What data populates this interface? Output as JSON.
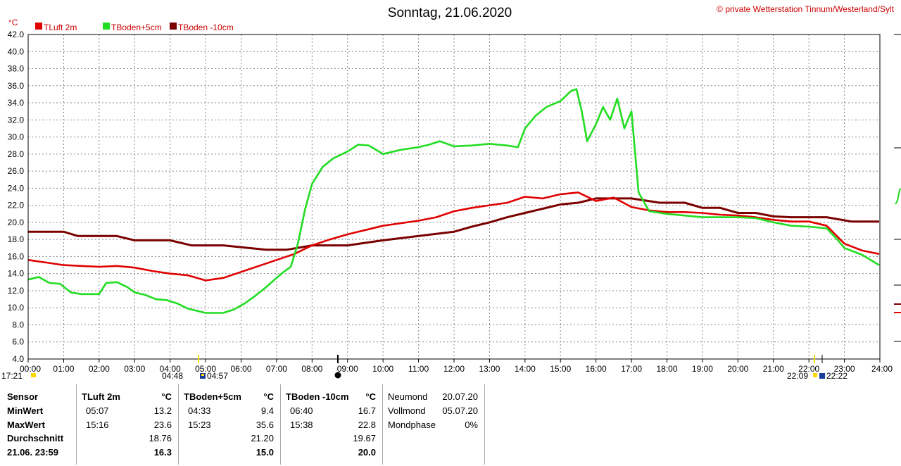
{
  "title": "Sonntag, 21.06.2020",
  "copyright": "© private Wetterstation Tinnum/Westerland/Sylt",
  "y_unit": "°C",
  "chart_data": {
    "type": "line",
    "title": "Sonntag, 21.06.2020",
    "ylim": [
      4.0,
      42.0
    ],
    "yticks": [
      "4.0",
      "6.0",
      "8.0",
      "10.0",
      "12.0",
      "14.0",
      "16.0",
      "18.0",
      "20.0",
      "22.0",
      "24.0",
      "26.0",
      "28.0",
      "30.0",
      "32.0",
      "34.0",
      "36.0",
      "38.0",
      "40.0",
      "42.0"
    ],
    "xticks": [
      "00:00",
      "01:00",
      "02:00",
      "03:00",
      "04:00",
      "05:00",
      "06:00",
      "07:00",
      "08:00",
      "09:00",
      "10:00",
      "11:00",
      "12:00",
      "13:00",
      "14:00",
      "15:00",
      "16:00",
      "17:00",
      "18:00",
      "19:00",
      "20:00",
      "21:00",
      "22:00",
      "23:00",
      "24:00"
    ],
    "xlim": [
      0,
      24
    ],
    "grid": true,
    "legend_position": "top-left",
    "series": [
      {
        "name": "TLuft 2m",
        "color": "#e00000",
        "x": [
          0,
          0.5,
          1,
          1.5,
          2,
          2.5,
          3,
          3.5,
          4,
          4.5,
          5,
          5.5,
          6,
          6.5,
          7,
          7.5,
          8,
          8.5,
          9,
          9.5,
          10,
          10.5,
          11,
          11.5,
          12,
          12.5,
          13,
          13.5,
          14,
          14.5,
          15,
          15.5,
          16,
          16.5,
          17,
          17.5,
          18,
          18.5,
          19,
          19.5,
          20,
          20.5,
          21,
          21.5,
          22,
          22.5,
          23,
          23.5,
          23.98
        ],
        "y": [
          15.6,
          15.3,
          15.0,
          14.9,
          14.8,
          14.9,
          14.7,
          14.3,
          14.0,
          13.8,
          13.2,
          13.5,
          14.2,
          14.9,
          15.6,
          16.3,
          17.3,
          18.0,
          18.6,
          19.1,
          19.6,
          19.9,
          20.2,
          20.6,
          21.3,
          21.7,
          22.0,
          22.3,
          23.0,
          22.8,
          23.3,
          23.5,
          22.5,
          22.9,
          21.8,
          21.4,
          21.2,
          21.2,
          21.1,
          20.9,
          20.8,
          20.6,
          20.3,
          20.1,
          20.1,
          19.6,
          17.5,
          16.7,
          16.3
        ]
      },
      {
        "name": "TBoden+5cm",
        "color": "#22dd22",
        "x": [
          0,
          0.3,
          0.6,
          0.9,
          1.2,
          1.5,
          2,
          2.2,
          2.5,
          2.8,
          3,
          3.3,
          3.6,
          3.9,
          4.2,
          4.5,
          4.8,
          5,
          5.5,
          5.8,
          6.1,
          6.4,
          6.7,
          7,
          7.2,
          7.4,
          7.6,
          7.8,
          8,
          8.3,
          8.6,
          9,
          9.3,
          9.6,
          10,
          10.5,
          11,
          11.3,
          11.6,
          12,
          12.5,
          13,
          13.5,
          13.8,
          14,
          14.3,
          14.6,
          15,
          15.3,
          15.45,
          15.6,
          15.75,
          16,
          16.2,
          16.4,
          16.6,
          16.8,
          17,
          17.2,
          17.5,
          18,
          18.5,
          19,
          19.5,
          20,
          20.5,
          21,
          21.5,
          22,
          22.5,
          22.8,
          23,
          23.5,
          23.98
        ],
        "y": [
          13.3,
          13.6,
          12.9,
          12.8,
          11.8,
          11.6,
          11.6,
          12.9,
          13.0,
          12.4,
          11.8,
          11.5,
          11.0,
          10.9,
          10.5,
          9.9,
          9.6,
          9.4,
          9.4,
          9.8,
          10.5,
          11.4,
          12.4,
          13.5,
          14.2,
          14.8,
          17.5,
          21.5,
          24.5,
          26.5,
          27.5,
          28.3,
          29.1,
          29.0,
          28.0,
          28.5,
          28.8,
          29.1,
          29.5,
          28.9,
          29.0,
          29.2,
          29.0,
          28.8,
          31.0,
          32.5,
          33.5,
          34.2,
          35.4,
          35.6,
          33.0,
          29.5,
          31.5,
          33.5,
          32.0,
          34.5,
          31.0,
          33.0,
          23.5,
          21.3,
          21.0,
          20.8,
          20.6,
          20.6,
          20.6,
          20.5,
          20.0,
          19.6,
          19.5,
          19.3,
          18.0,
          17.0,
          16.2,
          15.0
        ]
      },
      {
        "name": "TBoden -10cm",
        "color": "#7a0000",
        "x": [
          0,
          1,
          1.4,
          2.5,
          3,
          4,
          4.6,
          5.5,
          6.7,
          7.3,
          8,
          9,
          10,
          11,
          12,
          12.5,
          13,
          13.5,
          14,
          14.5,
          15,
          15.5,
          16,
          16.5,
          17,
          17.8,
          18.5,
          19,
          19.5,
          20,
          20.5,
          21,
          21.5,
          22,
          22.5,
          23.2,
          23.98
        ],
        "y": [
          18.9,
          18.9,
          18.4,
          18.4,
          17.9,
          17.9,
          17.3,
          17.3,
          16.8,
          16.8,
          17.3,
          17.3,
          17.9,
          18.4,
          18.9,
          19.5,
          20.0,
          20.6,
          21.1,
          21.6,
          22.1,
          22.3,
          22.8,
          22.8,
          22.8,
          22.3,
          22.3,
          21.7,
          21.7,
          21.1,
          21.1,
          20.7,
          20.6,
          20.6,
          20.6,
          20.1,
          20.1
        ]
      }
    ]
  },
  "sun_markers": {
    "left_time": "17:21",
    "twilight_left": "04:48",
    "sunrise": "04:57",
    "sunset": "22:09",
    "twilight_right": "22:22"
  },
  "stats": {
    "sensor_col": {
      "header": "Sensor",
      "rows": [
        "MinWert",
        "MaxWert",
        "Durchschnitt",
        "21.06. 23:59"
      ]
    },
    "panels": [
      {
        "name": "TLuft 2m",
        "unit": "°C",
        "rows": [
          {
            "time": "05:07",
            "value": "13.2"
          },
          {
            "time": "15:16",
            "value": "23.6"
          },
          {
            "time": "",
            "value": "18.76"
          },
          {
            "time": "",
            "value": "16.3"
          }
        ]
      },
      {
        "name": "TBoden+5cm",
        "unit": "°C",
        "rows": [
          {
            "time": "04:33",
            "value": "9.4"
          },
          {
            "time": "15:23",
            "value": "35.6"
          },
          {
            "time": "",
            "value": "21.20"
          },
          {
            "time": "",
            "value": "15.0"
          }
        ]
      },
      {
        "name": "TBoden -10cm",
        "unit": "°C",
        "rows": [
          {
            "time": "06:40",
            "value": "16.7"
          },
          {
            "time": "15:38",
            "value": "22.8"
          },
          {
            "time": "",
            "value": "19.67"
          },
          {
            "time": "",
            "value": "20.0"
          }
        ]
      }
    ],
    "moon": [
      {
        "label": "Neumond",
        "value": "20.07.20"
      },
      {
        "label": "Vollmond",
        "value": "05.07.20"
      },
      {
        "label": "Mondphase",
        "value": "0%"
      }
    ]
  }
}
